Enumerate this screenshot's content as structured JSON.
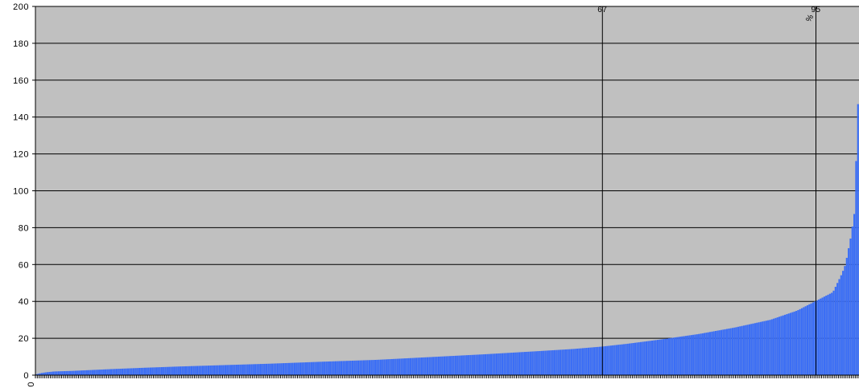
{
  "chart_data": {
    "type": "bar",
    "title": "",
    "xlabel": "",
    "ylabel": "",
    "ylim": [
      0,
      200
    ],
    "y_ticks": [
      "0",
      "20",
      "40",
      "60",
      "80",
      "100",
      "120",
      "140",
      "160",
      "180",
      "200"
    ],
    "x_tick_labels": [
      "0"
    ],
    "grid": true,
    "legend": "none",
    "colors": {
      "plot_background": "#c0c0c0",
      "bar": "#3b6ef5",
      "gridline": "#000000",
      "marker_line": "#000000"
    },
    "bar_count": 440,
    "values_profile": [
      [
        0,
        0.5
      ],
      [
        2,
        1
      ],
      [
        5,
        1.5
      ],
      [
        10,
        2
      ],
      [
        20,
        2.3
      ],
      [
        40,
        3.2
      ],
      [
        60,
        4
      ],
      [
        80,
        4.7
      ],
      [
        100,
        5.3
      ],
      [
        130,
        6.2
      ],
      [
        160,
        7.3
      ],
      [
        190,
        8.3
      ],
      [
        220,
        9.8
      ],
      [
        250,
        11.3
      ],
      [
        280,
        13
      ],
      [
        300,
        14.2
      ],
      [
        316,
        15.5
      ],
      [
        330,
        17
      ],
      [
        350,
        19.5
      ],
      [
        370,
        22.3
      ],
      [
        390,
        25.8
      ],
      [
        410,
        30
      ],
      [
        425,
        35
      ],
      [
        435,
        40
      ],
      [
        445,
        45
      ],
      [
        450,
        55
      ],
      [
        452,
        60
      ],
      [
        455,
        75
      ],
      [
        457,
        88
      ],
      [
        459,
        147
      ]
    ],
    "markers": [
      {
        "label": "67",
        "x": 316,
        "sublabel": ""
      },
      {
        "label": "95",
        "x": 435,
        "sublabel": "%"
      }
    ]
  }
}
